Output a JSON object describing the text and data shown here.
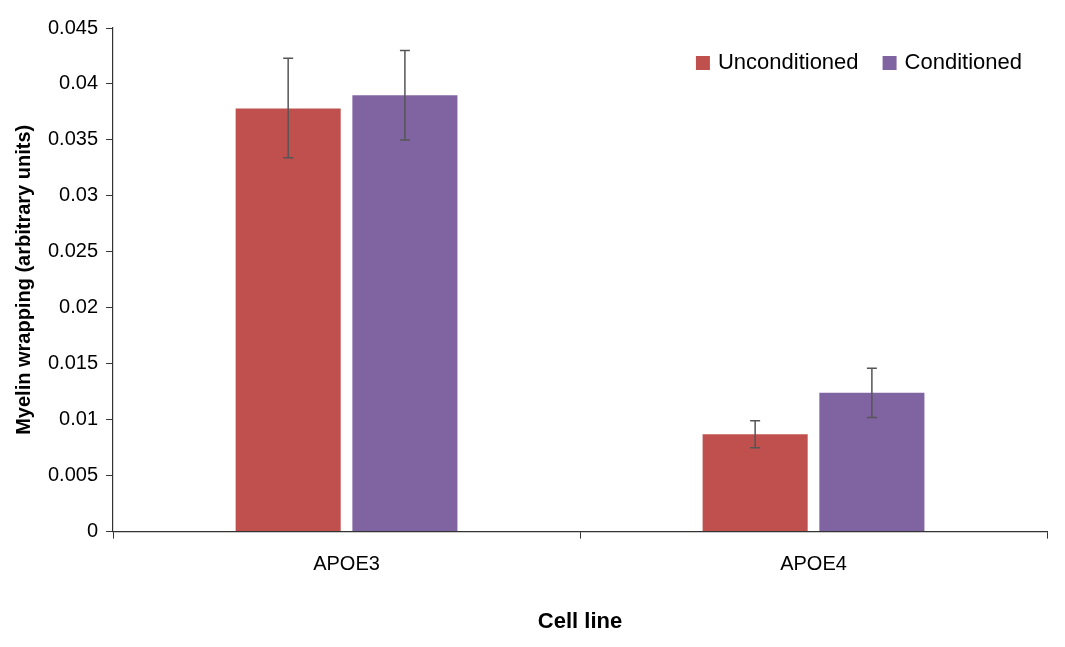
{
  "chart_data": {
    "type": "bar",
    "xlabel": "Cell line",
    "ylabel": "Myelin wrapping (arbitrary units)",
    "categories": [
      "APOE3",
      "APOE4"
    ],
    "series": [
      {
        "name": "Unconditioned",
        "color": "#c0504d",
        "values": [
          0.0378,
          0.0087
        ],
        "errors": [
          [
            0.0334,
            0.0423
          ],
          [
            0.0075,
            0.0099
          ]
        ]
      },
      {
        "name": "Conditioned",
        "color": "#8064a2",
        "values": [
          0.039,
          0.0124
        ],
        "errors": [
          [
            0.035,
            0.043
          ],
          [
            0.0102,
            0.0146
          ]
        ]
      }
    ],
    "ylim": [
      0,
      0.045
    ],
    "yticks": [
      0,
      0.005,
      0.01,
      0.015,
      0.02,
      0.025,
      0.03,
      0.035,
      0.04,
      0.045
    ],
    "grid": false,
    "legend": "top right"
  }
}
